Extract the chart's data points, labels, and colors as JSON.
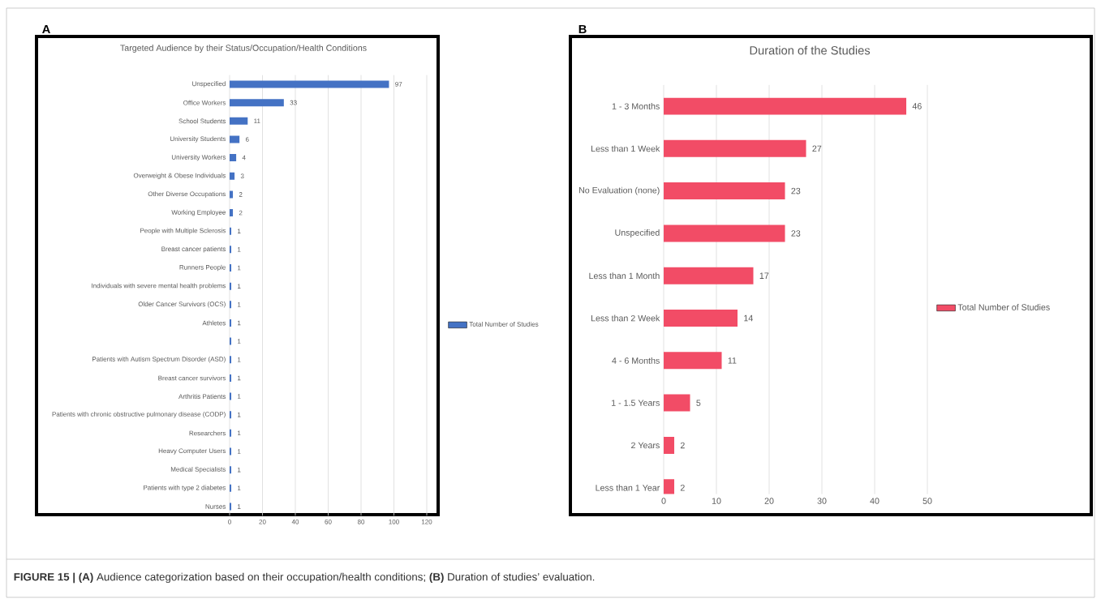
{
  "chart_data": [
    {
      "type": "bar",
      "orientation": "horizontal",
      "title": "Targeted Audience by their Status/Occupation/Health Conditions",
      "categories": [
        "Unspecified",
        "Office Workers",
        "School Students",
        "University Students",
        "University Workers",
        "Overweight & Obese Individuals",
        "Other Diverse Occupations",
        "Working Employee",
        "People with Multiple Sclerosis",
        "Breast cancer patients",
        "Runners People",
        "Individuals with severe mental health problems",
        "Older Cancer Survivors (OCS)",
        "Athletes",
        null,
        "Patients with Autism Spectrum Disorder (ASD)",
        "Breast cancer survivors",
        "Arthritis Patients",
        "Patients with chronic obstructive pulmonary disease (CODP)",
        "Researchers",
        "Heavy Computer Users",
        "Medical Specialists",
        "Patients with type 2 diabetes",
        "Nurses"
      ],
      "series": [
        {
          "name": "Total Number of Studies",
          "color": "#4472c4",
          "values": [
            97,
            33,
            11,
            6,
            4,
            3,
            2,
            2,
            1,
            1,
            1,
            1,
            1,
            1,
            1,
            1,
            1,
            1,
            1,
            1,
            1,
            1,
            1,
            1
          ]
        }
      ],
      "xlim": [
        0,
        120
      ],
      "xticks": [
        0,
        20,
        40,
        60,
        80,
        100,
        120
      ],
      "grid": "x",
      "legend": "right",
      "data_labels": true,
      "annotations": [
        "A",
        "**FIGURE 15 | (A)** Audience categorization based on their occupation/health conditions; **(B)** Duration of studies’ evaluation."
      ]
    },
    {
      "type": "bar",
      "orientation": "horizontal",
      "title": "Duration of the Studies",
      "categories": [
        "1 - 3 Months",
        "Less than 1 Week",
        "No Evaluation (none)",
        "Unspecified",
        "Less than 1 Month",
        "Less than 2 Week",
        "4 - 6 Months",
        "1 - 1.5 Years",
        "2 Years",
        "Less than 1 Year"
      ],
      "series": [
        {
          "name": "Total Number of Studies",
          "color": "#f24c66",
          "values": [
            46,
            27,
            23,
            23,
            17,
            14,
            11,
            5,
            2,
            2
          ]
        }
      ],
      "xlim": [
        0,
        50
      ],
      "xticks": [
        0,
        10,
        20,
        30,
        40,
        50
      ],
      "grid": "x",
      "legend": "right",
      "data_labels": true,
      "annotations": [
        "B"
      ]
    }
  ]
}
